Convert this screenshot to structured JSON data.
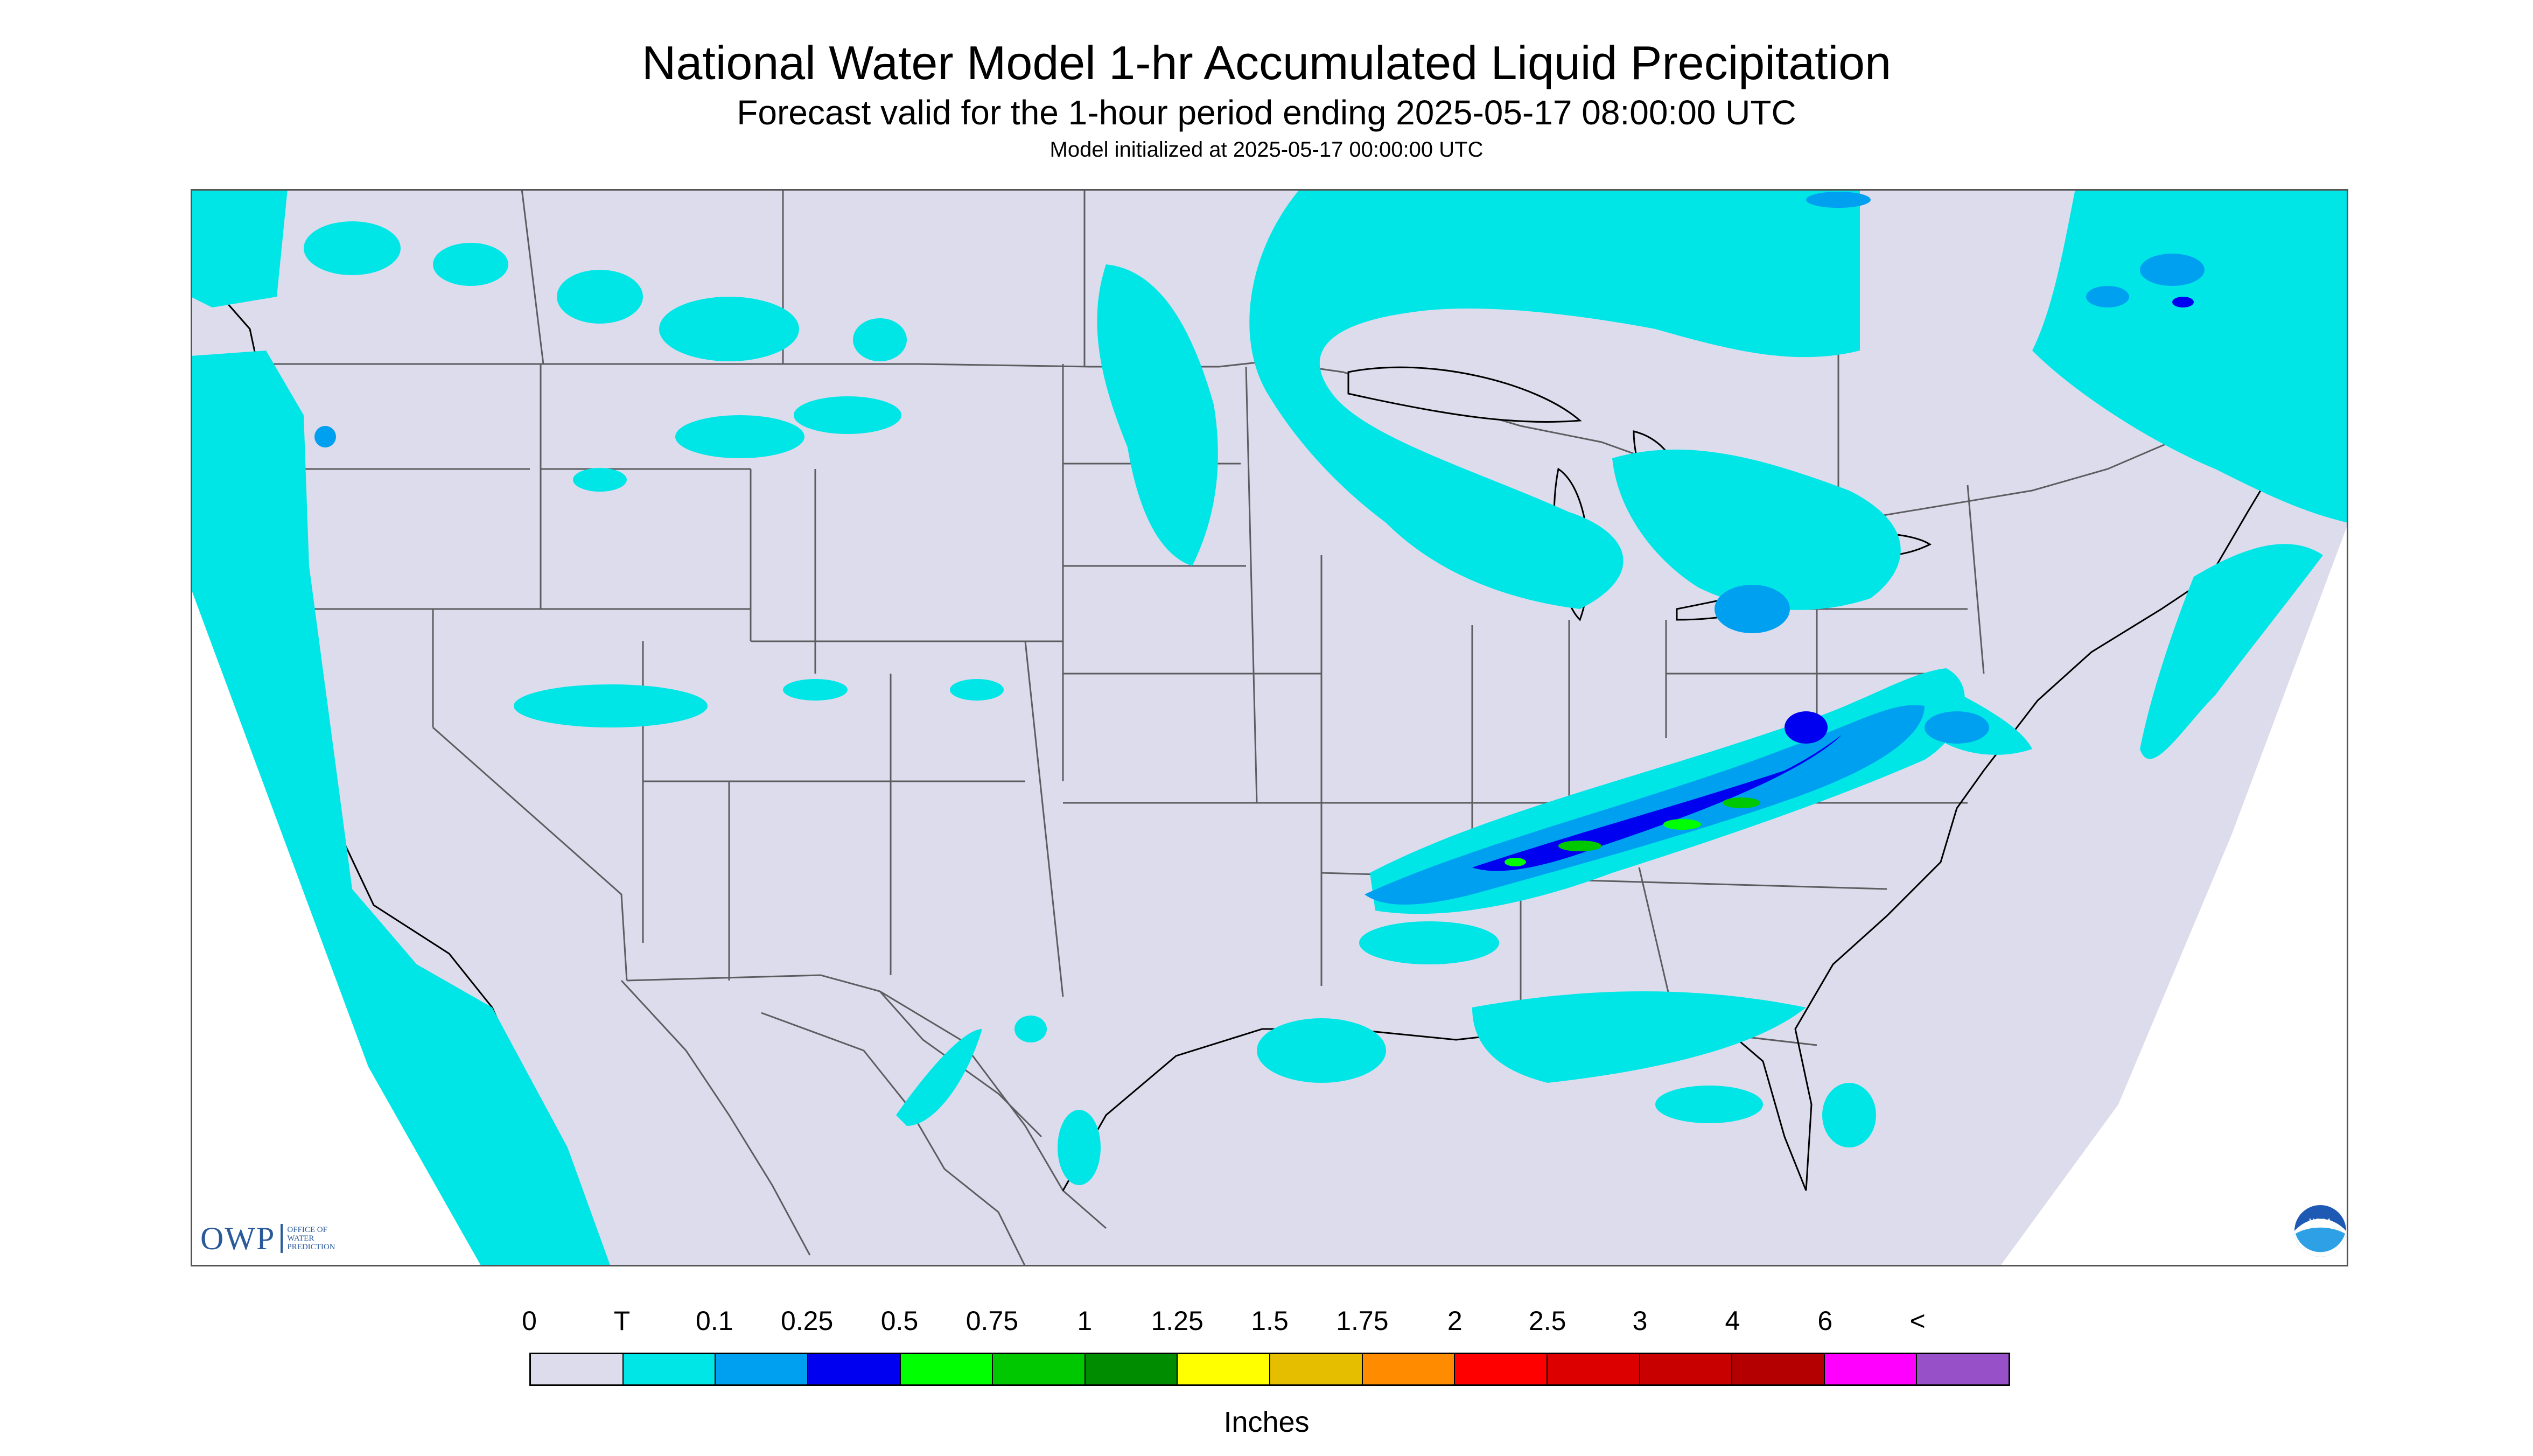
{
  "title": "National Water Model 1-hr Accumulated Liquid Precipitation",
  "subtitle": "Forecast valid for the 1-hour period ending 2025-05-17 08:00:00 UTC",
  "init_text": "Model initialized at 2025-05-17 00:00:00 UTC",
  "logo_owp": {
    "text": "OWP",
    "line1": "OFFICE OF",
    "line2": "WATER",
    "line3": "PREDICTION"
  },
  "logo_noaa": {
    "text": "NOAA"
  },
  "legend": {
    "ticks": [
      "0",
      "T",
      "0.1",
      "0.25",
      "0.5",
      "0.75",
      "1",
      "1.25",
      "1.5",
      "1.75",
      "2",
      "2.5",
      "3",
      "4",
      "6",
      "<"
    ],
    "colors": [
      "#dcdcec",
      "#00e6e6",
      "#00a0f0",
      "#0000f0",
      "#00ff00",
      "#00c800",
      "#008c00",
      "#ffff00",
      "#e6be00",
      "#ff8c00",
      "#ff0000",
      "#dc0000",
      "#c80000",
      "#b40000",
      "#ff00ff",
      "#9850c8"
    ],
    "units": "Inches"
  },
  "colors": {
    "background": "#dcdcec",
    "trace": "#00e6e6",
    "light": "#00a0f0",
    "moderate": "#0000f0",
    "heavy_green": "#00ff00",
    "outside": "#ffffff"
  }
}
